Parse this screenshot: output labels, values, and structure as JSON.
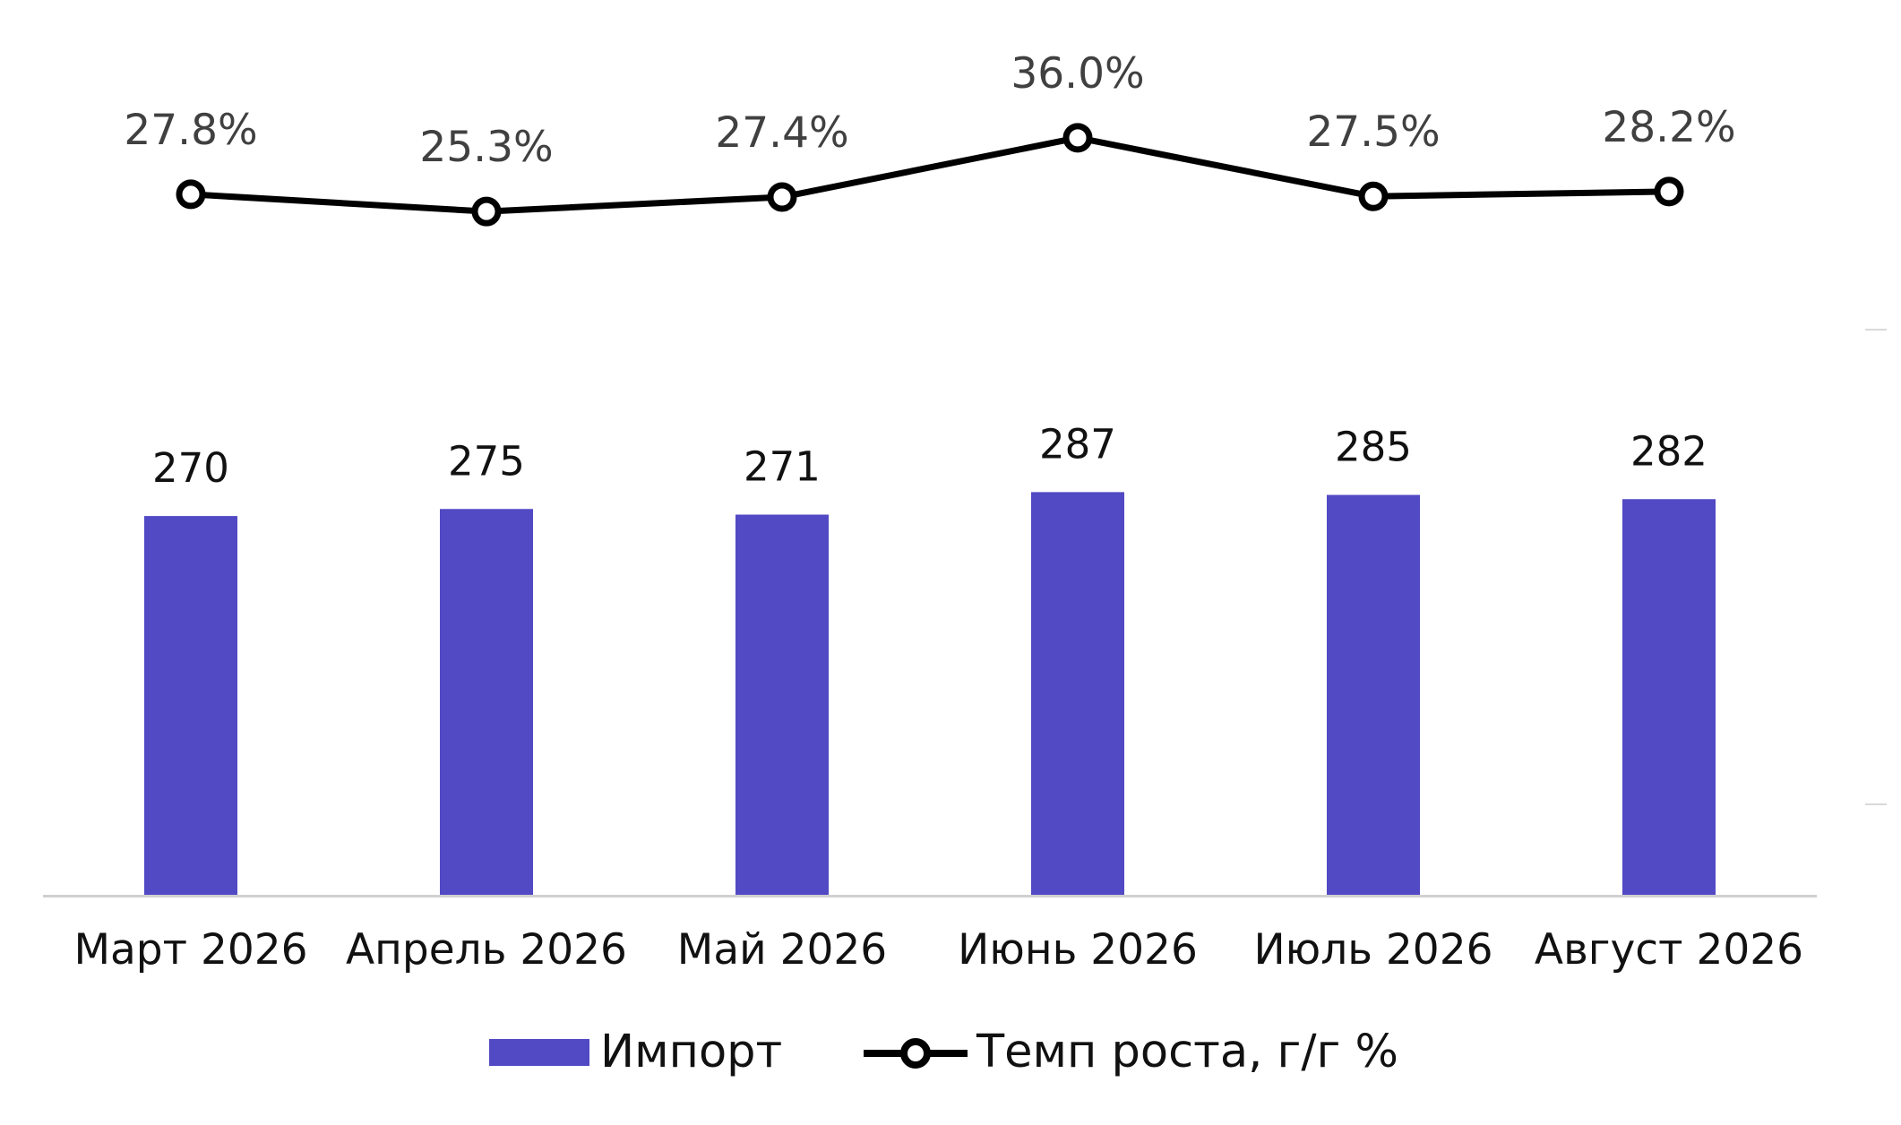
{
  "chart_data": {
    "type": "bar",
    "categories": [
      "Март 2026",
      "Апрель 2026",
      "Май 2026",
      "Июнь 2026",
      "Июль 2026",
      "Август 2026"
    ],
    "series": [
      {
        "name": "Импорт",
        "type": "bar",
        "values": [
          270,
          275,
          271,
          287,
          285,
          282
        ],
        "data_labels": [
          "270",
          "275",
          "271",
          "287",
          "285",
          "282"
        ],
        "color": "#5249C4"
      },
      {
        "name": "Темп роста, г/г %",
        "type": "line",
        "axis": "secondary",
        "values": [
          27.8,
          25.3,
          27.4,
          36.0,
          27.5,
          28.2
        ],
        "data_labels": [
          "27.8%",
          "25.3%",
          "27.4%",
          "36.0%",
          "27.5%",
          "28.2%"
        ],
        "color": "#000000",
        "marker": "hollow-circle"
      }
    ],
    "ylim": [
      0,
      540
    ],
    "y2lim": [
      -74,
      56
    ],
    "grid": false,
    "legend": "bottom-center",
    "title": "",
    "xlabel": "",
    "ylabel": ""
  }
}
